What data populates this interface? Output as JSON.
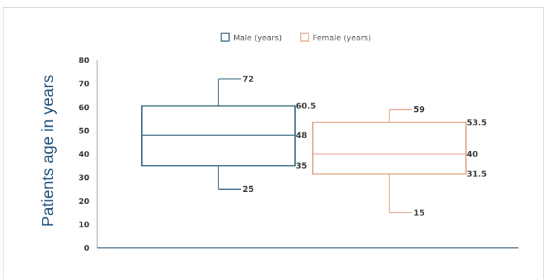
{
  "chart_data": {
    "type": "boxplot",
    "title": "",
    "xlabel": "",
    "ylabel": "Patients age in years",
    "ylim": [
      0,
      80
    ],
    "yticks": [
      0,
      10,
      20,
      30,
      40,
      50,
      60,
      70,
      80
    ],
    "legend_position": "top-center",
    "grid": false,
    "series": [
      {
        "name": "Male (years)",
        "color": "#31647d",
        "min": 25,
        "q1": 35,
        "median": 48,
        "q3": 60.5,
        "max": 72,
        "labels": {
          "max": "72",
          "q3": "60.5",
          "median": "48",
          "q1": "35",
          "min": "25"
        }
      },
      {
        "name": "Female (years)",
        "color": "#e3a488",
        "min": 15,
        "q1": 31.5,
        "median": 40,
        "q3": 53.5,
        "max": 59,
        "labels": {
          "max": "59",
          "q3": "53.5",
          "median": "40",
          "q1": "31.5",
          "min": "15"
        }
      }
    ]
  }
}
